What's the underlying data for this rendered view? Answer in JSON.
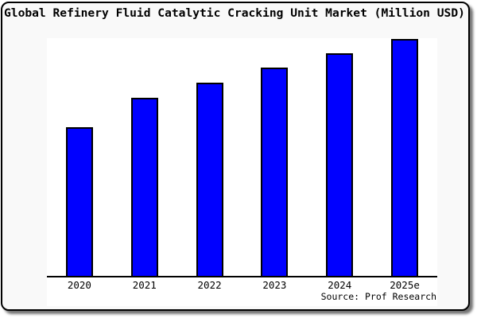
{
  "title": "Global Refinery Fluid Catalytic Cracking Unit Market (Million USD)",
  "source_credit": "Source: Prof Research",
  "colors": {
    "bar_fill": "#0000ff",
    "bar_border": "#000000",
    "figure_bg": "#f9f9f9",
    "plot_bg": "#ffffff",
    "frame_border": "#000000",
    "shadow": "#666666",
    "text": "#000000"
  },
  "chart_data": {
    "type": "bar",
    "title": "Global Refinery Fluid Catalytic Cracking Unit Market (Million USD)",
    "categories": [
      "2020",
      "2021",
      "2022",
      "2023",
      "2024",
      "2025e"
    ],
    "values": [
      62.7,
      75.0,
      81.3,
      87.5,
      93.7,
      99.7
    ],
    "value_unit": "percent of plot height (no numeric y-axis shown in figure)",
    "xlabel": "",
    "ylabel": "",
    "grid": false,
    "legend": false,
    "y_axis_ticks_visible": false,
    "annotations": [
      "Source: Prof Research"
    ]
  }
}
